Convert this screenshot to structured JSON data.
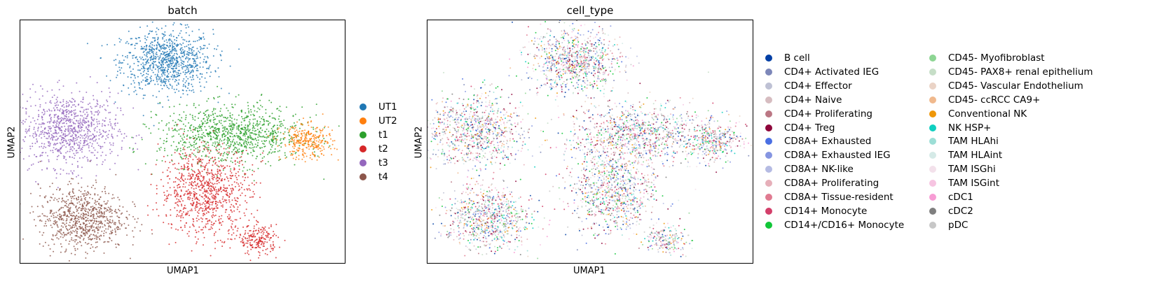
{
  "chart_data": [
    {
      "type": "scatter",
      "title": "batch",
      "xlabel": "UMAP1",
      "ylabel": "UMAP2",
      "grid": false,
      "legend_placement": "right",
      "legend_columns": 1,
      "categories": [
        {
          "name": "UT1",
          "color": "#1f77b4"
        },
        {
          "name": "UT2",
          "color": "#ff7f0e"
        },
        {
          "name": "t1",
          "color": "#2ca02c"
        },
        {
          "name": "t2",
          "color": "#d62728"
        },
        {
          "name": "t3",
          "color": "#9467bd"
        },
        {
          "name": "t4",
          "color": "#8c564b"
        }
      ],
      "clusters": [
        {
          "category": "UT1",
          "x": 0.45,
          "y": 0.83,
          "sx": 0.07,
          "sy": 0.065,
          "n": 900
        },
        {
          "category": "t3",
          "x": 0.15,
          "y": 0.55,
          "sx": 0.075,
          "sy": 0.075,
          "n": 900
        },
        {
          "category": "t4",
          "x": 0.19,
          "y": 0.19,
          "sx": 0.065,
          "sy": 0.065,
          "n": 800
        },
        {
          "category": "t1",
          "x": 0.65,
          "y": 0.53,
          "sx": 0.11,
          "sy": 0.06,
          "n": 1000
        },
        {
          "category": "t2",
          "x": 0.57,
          "y": 0.3,
          "sx": 0.07,
          "sy": 0.09,
          "n": 900
        },
        {
          "category": "t2",
          "x": 0.73,
          "y": 0.1,
          "sx": 0.03,
          "sy": 0.03,
          "n": 200
        },
        {
          "category": "UT2",
          "x": 0.88,
          "y": 0.5,
          "sx": 0.04,
          "sy": 0.035,
          "n": 300
        }
      ]
    },
    {
      "type": "scatter",
      "title": "cell_type",
      "xlabel": "UMAP1",
      "ylabel": "UMAP2",
      "grid": false,
      "legend_placement": "right",
      "legend_columns": 2,
      "categories": [
        {
          "name": "B cell",
          "color": "#023fa5"
        },
        {
          "name": "CD4+ Activated IEG",
          "color": "#7d87b9"
        },
        {
          "name": "CD4+ Effector",
          "color": "#bec1d4"
        },
        {
          "name": "CD4+ Naive",
          "color": "#d6bcc0"
        },
        {
          "name": "CD4+ Proliferating",
          "color": "#bb7784"
        },
        {
          "name": "CD4+ Treg",
          "color": "#8e063b"
        },
        {
          "name": "CD8A+ Exhausted",
          "color": "#4a6fe3"
        },
        {
          "name": "CD8A+ Exhausted IEG",
          "color": "#8595e1"
        },
        {
          "name": "CD8A+ NK-like",
          "color": "#b5bbe3"
        },
        {
          "name": "CD8A+ Proliferating",
          "color": "#e6afb9"
        },
        {
          "name": "CD8A+ Tissue-resident",
          "color": "#e07b91"
        },
        {
          "name": "CD14+ Monocyte",
          "color": "#d33f6a"
        },
        {
          "name": "CD14+/CD16+ Monocyte",
          "color": "#11c638"
        },
        {
          "name": "CD45- Myofibroblast",
          "color": "#8dd593"
        },
        {
          "name": "CD45- PAX8+ renal epithelium",
          "color": "#c6dec7"
        },
        {
          "name": "CD45- Vascular Endothelium",
          "color": "#ead3c6"
        },
        {
          "name": "CD45- ccRCC CA9+",
          "color": "#f0b98d"
        },
        {
          "name": "Conventional NK",
          "color": "#ef9708"
        },
        {
          "name": "NK HSP+",
          "color": "#0fcfc0"
        },
        {
          "name": "TAM HLAhi",
          "color": "#9cded6"
        },
        {
          "name": "TAM HLAint",
          "color": "#d5eae7"
        },
        {
          "name": "TAM ISGhi",
          "color": "#f3e1eb"
        },
        {
          "name": "TAM ISGint",
          "color": "#f6c4e1"
        },
        {
          "name": "cDC1",
          "color": "#f79cd4"
        },
        {
          "name": "cDC2",
          "color": "#7f7f7f"
        },
        {
          "name": "pDC",
          "color": "#c7c7c7"
        }
      ]
    }
  ]
}
